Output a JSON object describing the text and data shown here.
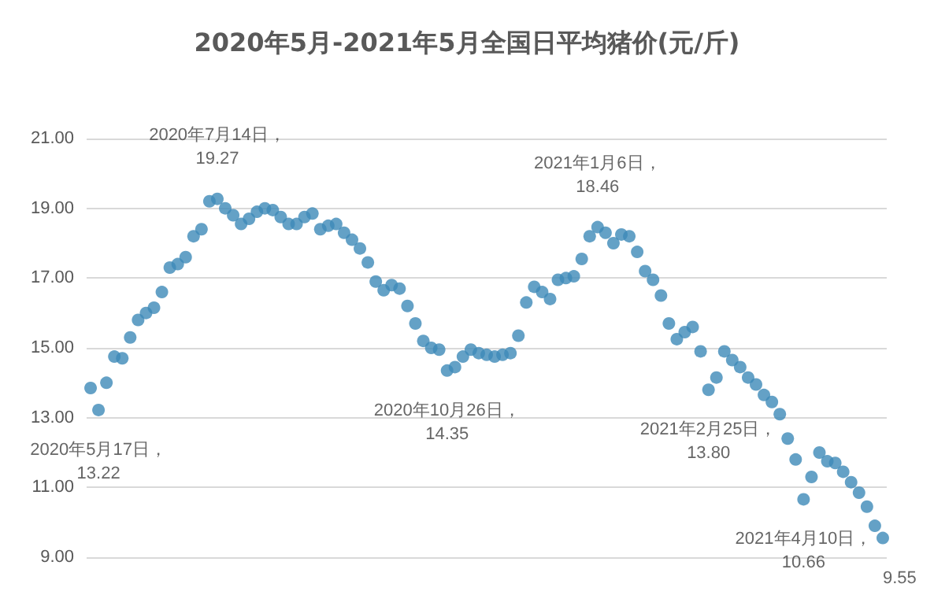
{
  "chart_data": {
    "type": "scatter",
    "title": "2020年5月-2021年5月全国日平均猪价(元/斤)",
    "categories": [
      null,
      null,
      null,
      null,
      null,
      null,
      null,
      null,
      null,
      null,
      null,
      null,
      null,
      null,
      null,
      null,
      null,
      null,
      null,
      null,
      null,
      null,
      null,
      null,
      null,
      null,
      null,
      null,
      null,
      null,
      null,
      null,
      null,
      null,
      null,
      null,
      null,
      null,
      null,
      null,
      null,
      null,
      null,
      null,
      null,
      null,
      null,
      null,
      null,
      null,
      null,
      null,
      null,
      null,
      null,
      null,
      null,
      null,
      null,
      null,
      null,
      null,
      null,
      null,
      null,
      null,
      null,
      null,
      null,
      null,
      null,
      null,
      null,
      null,
      null,
      null,
      null,
      null,
      null,
      null,
      null,
      null,
      null,
      null,
      null,
      null,
      null,
      null,
      null,
      null,
      null,
      null,
      null,
      null,
      null,
      null,
      null,
      null,
      null,
      null,
      null
    ],
    "series": [
      {
        "color": "#3d8ab8",
        "values": [
          13.85,
          13.22,
          14.0,
          14.75,
          14.7,
          15.3,
          15.8,
          16.0,
          16.15,
          16.6,
          17.3,
          17.4,
          17.6,
          18.2,
          18.4,
          19.2,
          19.27,
          19.0,
          18.8,
          18.55,
          18.7,
          18.9,
          19.0,
          18.95,
          18.75,
          18.55,
          18.55,
          18.75,
          18.85,
          18.4,
          18.5,
          18.55,
          18.3,
          18.1,
          17.85,
          17.45,
          16.9,
          16.65,
          16.8,
          16.7,
          16.2,
          15.7,
          15.2,
          15.0,
          14.95,
          14.35,
          14.45,
          14.75,
          14.95,
          14.85,
          14.8,
          14.75,
          14.8,
          14.85,
          15.35,
          16.3,
          16.75,
          16.6,
          16.4,
          16.95,
          17.0,
          17.05,
          17.55,
          18.2,
          18.46,
          18.3,
          18.0,
          18.25,
          18.2,
          17.75,
          17.2,
          16.95,
          16.5,
          15.7,
          15.25,
          15.45,
          15.6,
          14.9,
          13.8,
          14.15,
          14.9,
          14.65,
          14.45,
          14.15,
          13.95,
          13.65,
          13.45,
          13.1,
          12.4,
          11.8,
          10.66,
          11.3,
          12.0,
          11.75,
          11.7,
          11.45,
          11.15,
          10.85,
          10.45,
          9.9,
          9.55
        ],
        "value_labels": [
          null,
          "2020年5月17日，\n13.22",
          null,
          null,
          null,
          null,
          null,
          null,
          null,
          null,
          null,
          null,
          null,
          null,
          null,
          null,
          "2020年7月14日，\n19.27",
          null,
          null,
          null,
          null,
          null,
          null,
          null,
          null,
          null,
          null,
          null,
          null,
          null,
          null,
          null,
          null,
          null,
          null,
          null,
          null,
          null,
          null,
          null,
          null,
          null,
          null,
          null,
          null,
          "2020年10月26日，\n14.35",
          null,
          null,
          null,
          null,
          null,
          null,
          null,
          null,
          null,
          null,
          null,
          null,
          null,
          null,
          null,
          null,
          null,
          null,
          "2021年1月6日，\n18.46",
          null,
          null,
          null,
          null,
          null,
          null,
          null,
          null,
          null,
          null,
          null,
          null,
          null,
          "2021年2月25日，\n13.80",
          null,
          null,
          null,
          null,
          null,
          null,
          null,
          null,
          null,
          null,
          null,
          "2021年4月10日，\n10.66",
          null,
          null,
          null,
          null,
          null,
          null,
          null,
          null,
          null,
          "9.55"
        ]
      }
    ],
    "ylim": [
      9,
      21
    ],
    "yticks": [
      {
        "value": 9,
        "label": "9.00"
      },
      {
        "value": 11,
        "label": "11.00"
      },
      {
        "value": 13,
        "label": "13.00"
      },
      {
        "value": 15,
        "label": "15.00"
      },
      {
        "value": 17,
        "label": "17.00"
      },
      {
        "value": 19,
        "label": "19.00"
      },
      {
        "value": 21,
        "label": "21.00"
      }
    ],
    "grid": "y",
    "marker": "circle"
  }
}
